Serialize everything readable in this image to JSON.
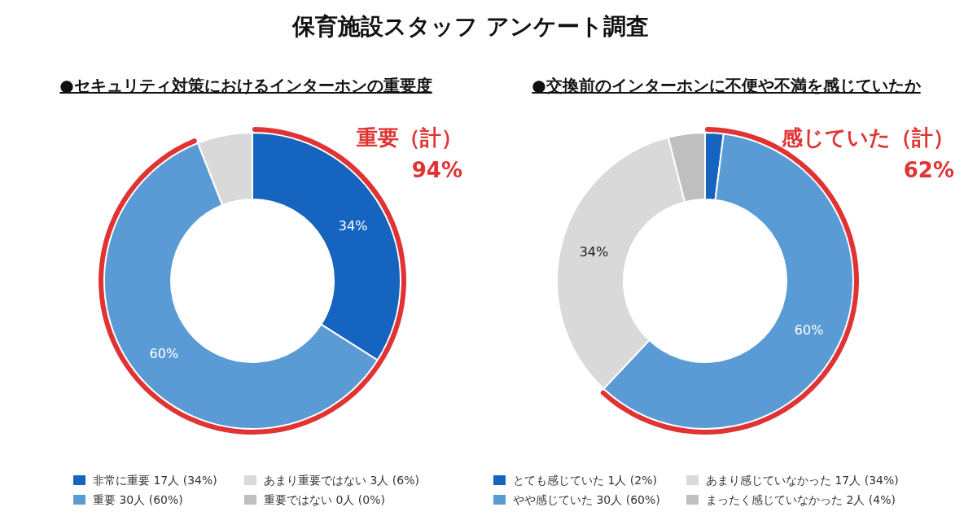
{
  "chart_data": [
    {
      "type": "donut",
      "title": "保育施設スタッフ アンケート調査",
      "subtitle": "●セキュリティ対策におけるインターホンの重要度",
      "categories": [
        "非常に重要 17人 (34%)",
        "重要 30人 (60%)",
        "あまり重要ではない 3人 (6%)",
        "重要ではない 0人 (0%)"
      ],
      "values": [
        34,
        60,
        6,
        0
      ],
      "colors": [
        "#1565c0",
        "#5b9bd5",
        "#d9d9d9",
        "#bfbfbf"
      ],
      "value_labels": [
        "34%",
        "60%",
        null,
        null
      ],
      "legend": "bottom",
      "annotations": [
        "重要（計）",
        "94%"
      ]
    },
    {
      "type": "donut",
      "subtitle": "●交換前のインターホンに不便や不満を感じていたか",
      "categories": [
        "とても感じていた 1人 (2%)",
        "やや感じていた 30人 (60%)",
        "あまり感じていなかった 17人 (34%)",
        "まったく感じていなかった 2人 (4%)"
      ],
      "values": [
        2,
        60,
        34,
        4
      ],
      "colors": [
        "#1565c0",
        "#5b9bd5",
        "#d9d9d9",
        "#bfbfbf"
      ],
      "value_labels": [
        null,
        "60%",
        "34%",
        null
      ],
      "legend": "bottom",
      "annotations": [
        "感じていた（計）",
        "62%"
      ]
    }
  ]
}
